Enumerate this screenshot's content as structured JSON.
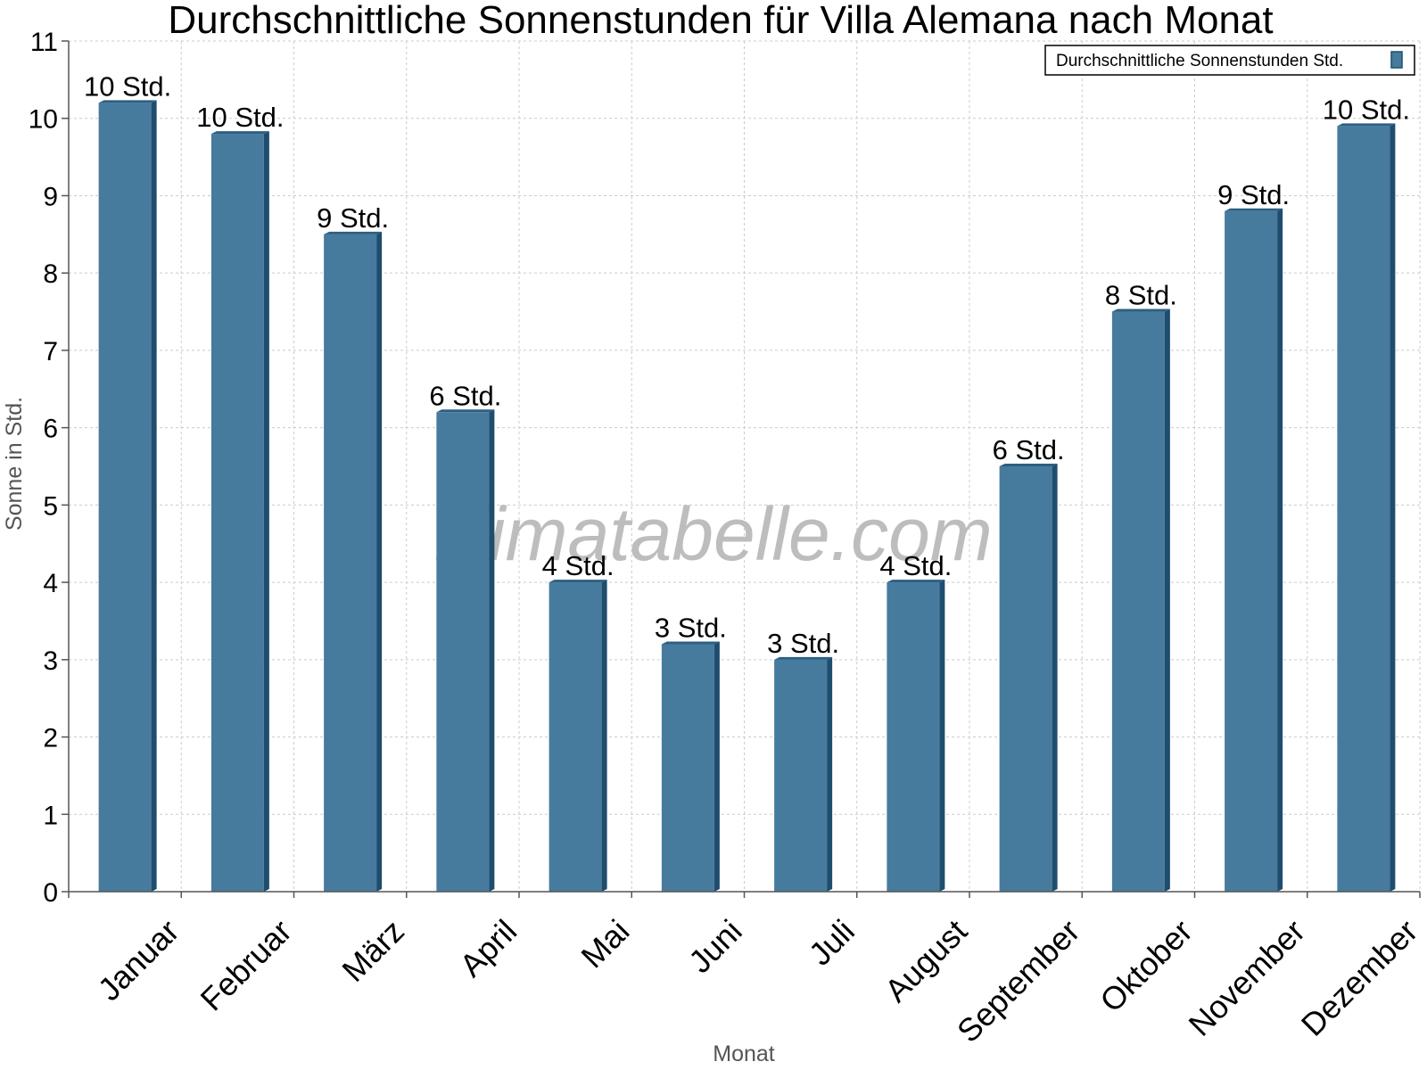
{
  "chart_data": {
    "type": "bar",
    "title": "Durchschnittliche Sonnenstunden für Villa Alemana nach Monat",
    "xlabel": "Monat",
    "ylabel": "Sonne in Std.",
    "categories": [
      "Januar",
      "Februar",
      "März",
      "April",
      "Mai",
      "Juni",
      "Juli",
      "August",
      "September",
      "Oktober",
      "November",
      "Dezember"
    ],
    "series": [
      {
        "name": "Durchschnittliche Sonnenstunden Std.",
        "values": [
          10.2,
          9.8,
          8.5,
          6.2,
          4.0,
          3.2,
          3.0,
          4.0,
          5.5,
          7.5,
          8.8,
          9.9
        ],
        "labels": [
          "10 Std.",
          "10 Std.",
          "9 Std.",
          "6 Std.",
          "4 Std.",
          "3 Std.",
          "3 Std.",
          "4 Std.",
          "6 Std.",
          "8 Std.",
          "9 Std.",
          "10 Std."
        ]
      }
    ],
    "ylim": [
      0,
      11
    ],
    "yticks": [
      0,
      1,
      2,
      3,
      4,
      5,
      6,
      7,
      8,
      9,
      10,
      11
    ],
    "grid": true,
    "legend_position": "top-right",
    "colors": {
      "bar": "#467b9e",
      "bar_side": "#1e4d6e",
      "bar_top": "#2c5f82",
      "grid": "#cccccc",
      "axis": "#555555"
    }
  },
  "watermark": "klimatabelle.com"
}
